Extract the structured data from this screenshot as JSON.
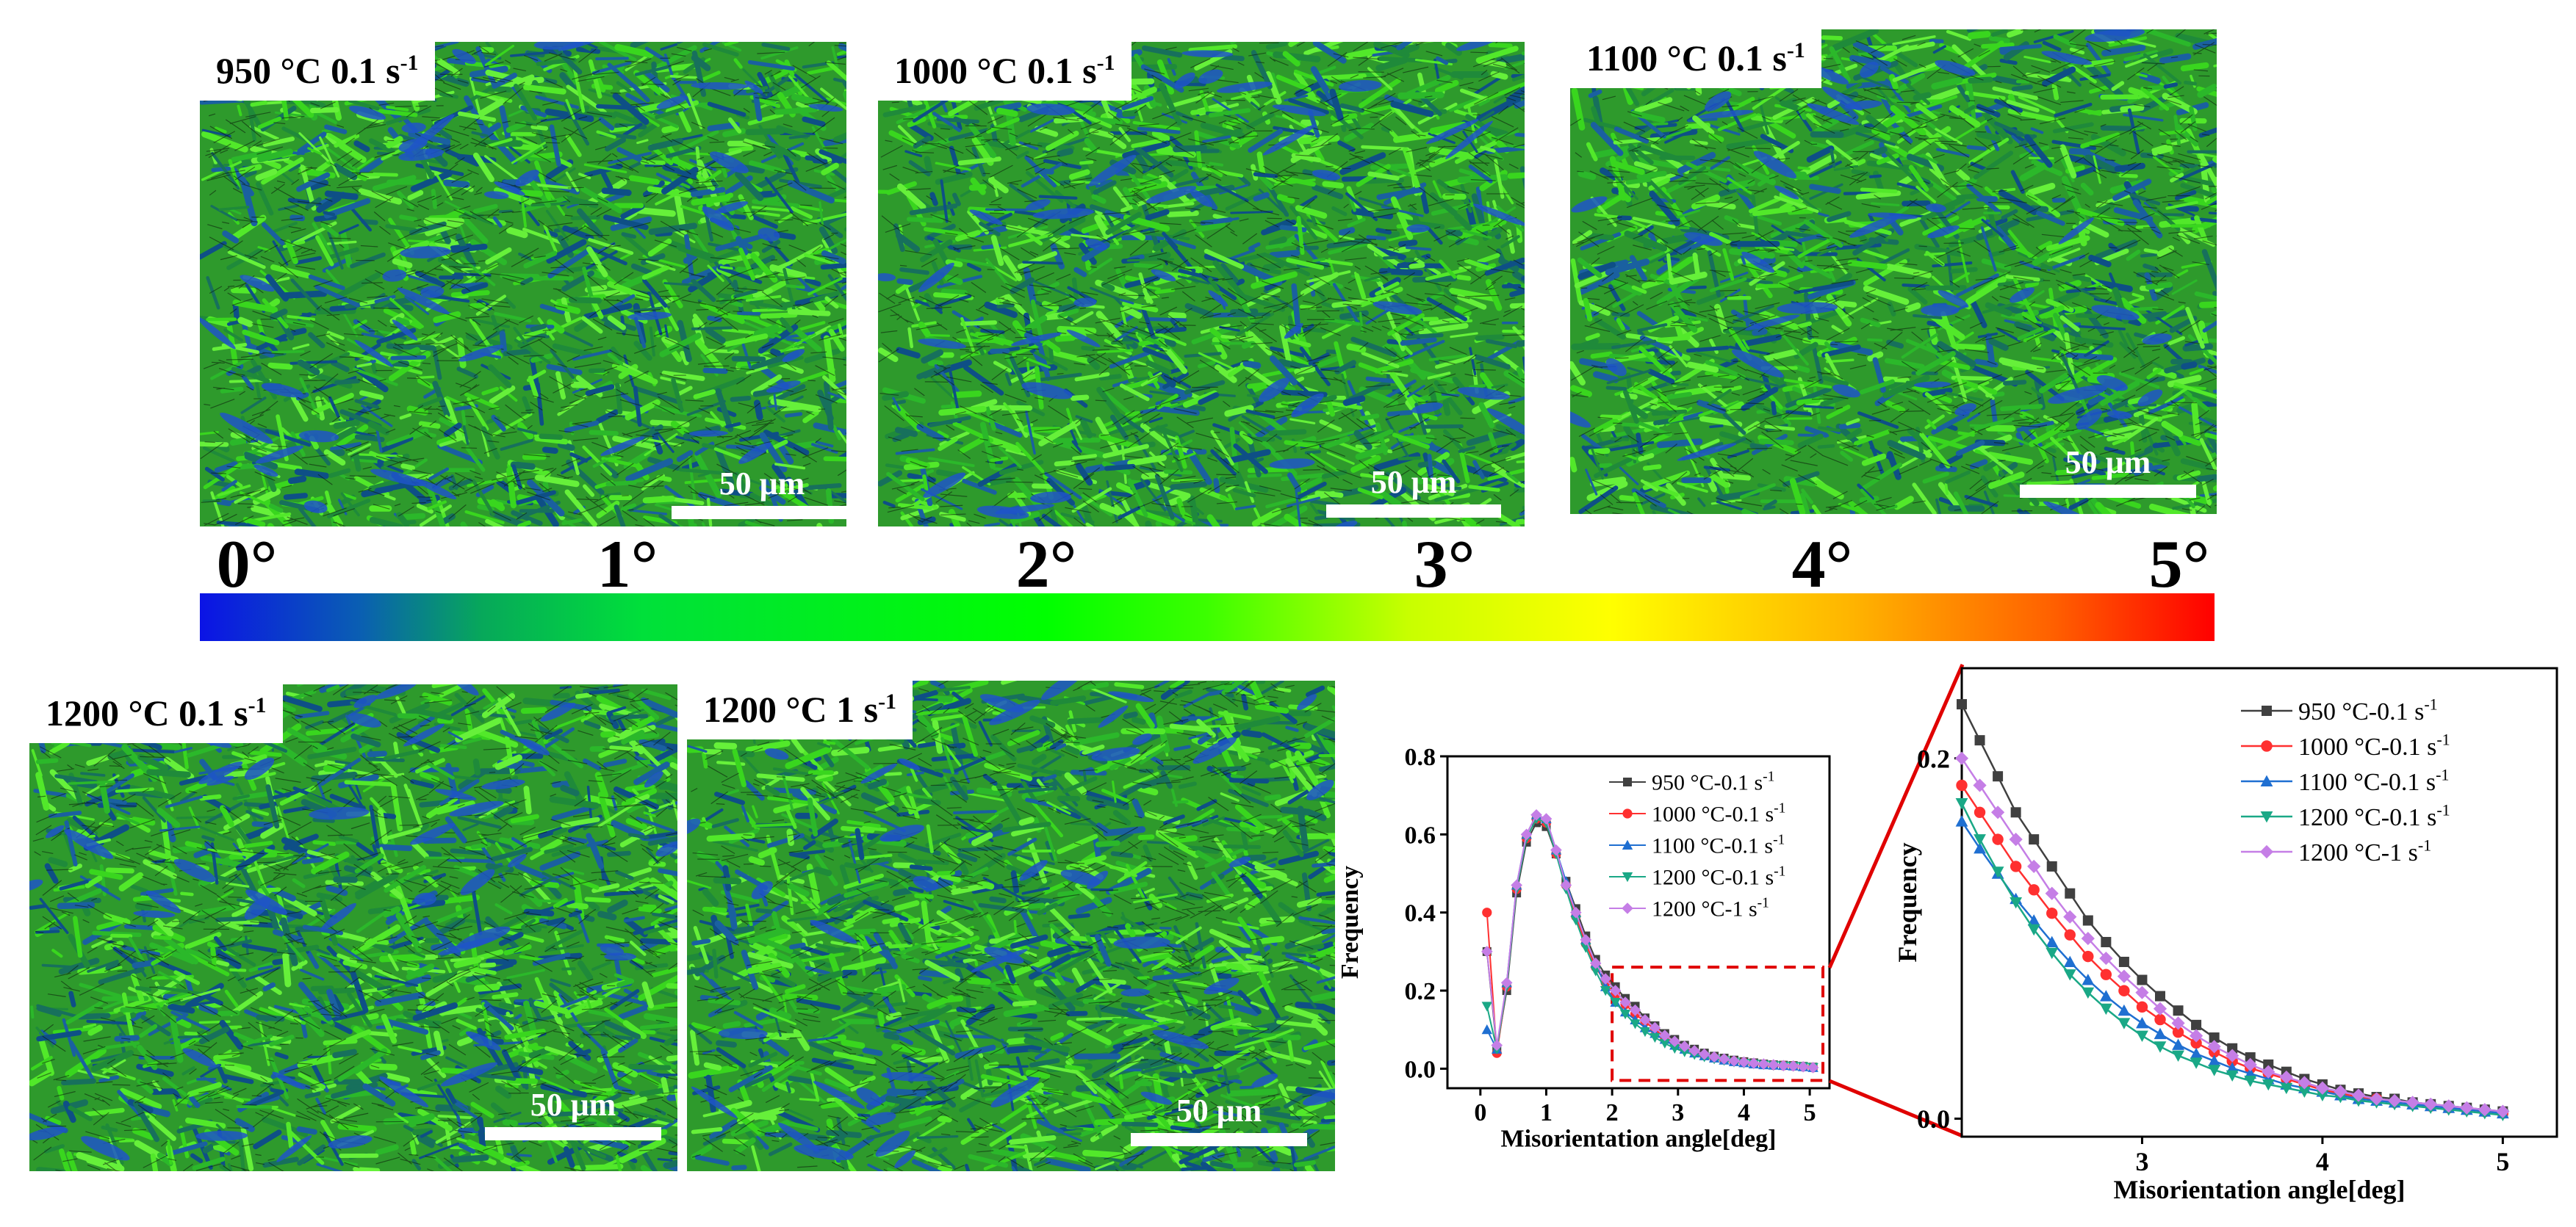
{
  "panels": [
    {
      "id": "p950",
      "label_temp": "950 °C 0.1 s",
      "label_sup": "-1",
      "scalebar": "50 μm"
    },
    {
      "id": "p1000",
      "label_temp": "1000 °C 0.1 s",
      "label_sup": "-1",
      "scalebar": "50 μm"
    },
    {
      "id": "p1100",
      "label_temp": "1100 °C 0.1 s",
      "label_sup": "-1",
      "scalebar": "50 μm"
    },
    {
      "id": "p1200a",
      "label_temp": "1200 °C 0.1 s",
      "label_sup": "-1",
      "scalebar": "50 μm"
    },
    {
      "id": "p1200b",
      "label_temp": "1200 °C 1 s",
      "label_sup": "-1",
      "scalebar": "50 μm"
    }
  ],
  "colorbar": {
    "ticks": [
      "0°",
      "1°",
      "2°",
      "3°",
      "4°",
      "5°"
    ],
    "colors": {
      "low": "#0b13e6",
      "mid": "#00ff00",
      "high": "#ff0000"
    }
  },
  "chart_data": [
    {
      "type": "line",
      "title": "",
      "xlabel": "Misorientation  angle[deg]",
      "ylabel": "Frequency",
      "xlim": [
        -0.5,
        5.3
      ],
      "ylim": [
        -0.05,
        0.8
      ],
      "xticks": [
        "0",
        "1",
        "2",
        "3",
        "4",
        "5"
      ],
      "yticks": [
        "0.0",
        "0.2",
        "0.4",
        "0.6",
        "0.8"
      ],
      "legend_position": "right",
      "highlight_box": {
        "x": [
          2.0,
          5.2
        ],
        "y": [
          -0.03,
          0.26
        ]
      },
      "series": [
        {
          "name": "950 °C-0.1 s",
          "sup": "-1",
          "color": "#404040",
          "marker": "square",
          "x": [
            0.1,
            0.25,
            0.4,
            0.55,
            0.7,
            0.85,
            1.0,
            1.15,
            1.3,
            1.45,
            1.6,
            1.75,
            1.9,
            2.05,
            2.2,
            2.35,
            2.5,
            2.65,
            2.8,
            2.95,
            3.1,
            3.25,
            3.4,
            3.55,
            3.7,
            3.85,
            4.0,
            4.15,
            4.3,
            4.45,
            4.6,
            4.75,
            4.9,
            5.05
          ],
          "values": [
            0.3,
            0.05,
            0.2,
            0.45,
            0.58,
            0.63,
            0.62,
            0.55,
            0.48,
            0.41,
            0.34,
            0.28,
            0.24,
            0.21,
            0.18,
            0.16,
            0.13,
            0.11,
            0.09,
            0.075,
            0.06,
            0.05,
            0.04,
            0.032,
            0.027,
            0.022,
            0.018,
            0.015,
            0.012,
            0.01,
            0.009,
            0.008,
            0.006,
            0.004
          ]
        },
        {
          "name": "1000 °C-0.1 s",
          "sup": "-1",
          "color": "#ff3030",
          "marker": "circle",
          "x": [
            0.1,
            0.25,
            0.4,
            0.55,
            0.7,
            0.85,
            1.0,
            1.15,
            1.3,
            1.45,
            1.6,
            1.75,
            1.9,
            2.05,
            2.2,
            2.35,
            2.5,
            2.65,
            2.8,
            2.95,
            3.1,
            3.25,
            3.4,
            3.55,
            3.7,
            3.85,
            4.0,
            4.15,
            4.3,
            4.45,
            4.6,
            4.75,
            4.9,
            5.05
          ],
          "values": [
            0.4,
            0.04,
            0.21,
            0.46,
            0.59,
            0.64,
            0.63,
            0.55,
            0.47,
            0.39,
            0.32,
            0.26,
            0.22,
            0.19,
            0.165,
            0.14,
            0.12,
            0.1,
            0.08,
            0.065,
            0.052,
            0.042,
            0.034,
            0.028,
            0.023,
            0.019,
            0.016,
            0.013,
            0.011,
            0.009,
            0.008,
            0.007,
            0.005,
            0.003
          ]
        },
        {
          "name": "1100 °C-0.1 s",
          "sup": "-1",
          "color": "#1f6fd1",
          "marker": "triangle-up",
          "x": [
            0.1,
            0.25,
            0.4,
            0.55,
            0.7,
            0.85,
            1.0,
            1.15,
            1.3,
            1.45,
            1.6,
            1.75,
            1.9,
            2.05,
            2.2,
            2.35,
            2.5,
            2.65,
            2.8,
            2.95,
            3.1,
            3.25,
            3.4,
            3.55,
            3.7,
            3.85,
            4.0,
            4.15,
            4.3,
            4.45,
            4.6,
            4.75,
            4.9,
            5.05
          ],
          "values": [
            0.1,
            0.05,
            0.22,
            0.47,
            0.6,
            0.65,
            0.64,
            0.56,
            0.48,
            0.4,
            0.33,
            0.27,
            0.21,
            0.17,
            0.145,
            0.125,
            0.105,
            0.09,
            0.075,
            0.06,
            0.05,
            0.04,
            0.033,
            0.027,
            0.022,
            0.018,
            0.015,
            0.012,
            0.01,
            0.009,
            0.008,
            0.007,
            0.005,
            0.003
          ]
        },
        {
          "name": "1200 °C-0.1 s",
          "sup": "-1",
          "color": "#1aa886",
          "marker": "triangle-down",
          "x": [
            0.1,
            0.25,
            0.4,
            0.55,
            0.7,
            0.85,
            1.0,
            1.15,
            1.3,
            1.45,
            1.6,
            1.75,
            1.9,
            2.05,
            2.2,
            2.35,
            2.5,
            2.65,
            2.8,
            2.95,
            3.1,
            3.25,
            3.4,
            3.55,
            3.7,
            3.85,
            4.0,
            4.15,
            4.3,
            4.45,
            4.6,
            4.75,
            4.9,
            5.05
          ],
          "values": [
            0.16,
            0.05,
            0.21,
            0.46,
            0.59,
            0.64,
            0.63,
            0.55,
            0.46,
            0.38,
            0.31,
            0.25,
            0.2,
            0.17,
            0.14,
            0.115,
            0.095,
            0.08,
            0.065,
            0.052,
            0.043,
            0.036,
            0.03,
            0.025,
            0.021,
            0.017,
            0.014,
            0.012,
            0.01,
            0.008,
            0.007,
            0.006,
            0.005,
            0.003
          ]
        },
        {
          "name": "1200 °C-1 s",
          "sup": "-1",
          "color": "#c57ee6",
          "marker": "diamond",
          "x": [
            0.1,
            0.25,
            0.4,
            0.55,
            0.7,
            0.85,
            1.0,
            1.15,
            1.3,
            1.45,
            1.6,
            1.75,
            1.9,
            2.05,
            2.2,
            2.35,
            2.5,
            2.65,
            2.8,
            2.95,
            3.1,
            3.25,
            3.4,
            3.55,
            3.7,
            3.85,
            4.0,
            4.15,
            4.3,
            4.45,
            4.6,
            4.75,
            4.9,
            5.05
          ],
          "values": [
            0.3,
            0.06,
            0.22,
            0.47,
            0.6,
            0.65,
            0.64,
            0.56,
            0.47,
            0.4,
            0.33,
            0.27,
            0.23,
            0.2,
            0.17,
            0.15,
            0.125,
            0.105,
            0.085,
            0.07,
            0.057,
            0.046,
            0.037,
            0.03,
            0.025,
            0.02,
            0.017,
            0.014,
            0.012,
            0.01,
            0.008,
            0.007,
            0.005,
            0.003
          ]
        }
      ]
    },
    {
      "type": "line",
      "title": "",
      "xlabel": "Misorientation  angle[deg]",
      "ylabel": "Frequency",
      "xlim": [
        2.0,
        5.3
      ],
      "ylim": [
        -0.01,
        0.25
      ],
      "xticks": [
        "3",
        "4",
        "5"
      ],
      "yticks": [
        "0.0",
        "0.2"
      ],
      "legend_position": "top-right",
      "series": [
        {
          "name": "950 °C-0.1 s",
          "sup": "-1",
          "color": "#404040",
          "marker": "square",
          "x": [
            2.0,
            2.1,
            2.2,
            2.3,
            2.4,
            2.5,
            2.6,
            2.7,
            2.8,
            2.9,
            3.0,
            3.1,
            3.2,
            3.3,
            3.4,
            3.5,
            3.6,
            3.7,
            3.8,
            3.9,
            4.0,
            4.1,
            4.2,
            4.3,
            4.4,
            4.5,
            4.6,
            4.7,
            4.8,
            4.9,
            5.0
          ],
          "values": [
            0.23,
            0.21,
            0.19,
            0.17,
            0.155,
            0.14,
            0.125,
            0.11,
            0.098,
            0.087,
            0.077,
            0.068,
            0.06,
            0.052,
            0.045,
            0.039,
            0.034,
            0.03,
            0.026,
            0.022,
            0.019,
            0.016,
            0.014,
            0.012,
            0.011,
            0.009,
            0.008,
            0.007,
            0.006,
            0.005,
            0.004
          ]
        },
        {
          "name": "1000 °C-0.1 s",
          "sup": "-1",
          "color": "#ff3030",
          "marker": "circle",
          "x": [
            2.0,
            2.1,
            2.2,
            2.3,
            2.4,
            2.5,
            2.6,
            2.7,
            2.8,
            2.9,
            3.0,
            3.1,
            3.2,
            3.3,
            3.4,
            3.5,
            3.6,
            3.7,
            3.8,
            3.9,
            4.0,
            4.1,
            4.2,
            4.3,
            4.4,
            4.5,
            4.6,
            4.7,
            4.8,
            4.9,
            5.0
          ],
          "values": [
            0.185,
            0.17,
            0.155,
            0.14,
            0.127,
            0.114,
            0.102,
            0.09,
            0.08,
            0.071,
            0.062,
            0.055,
            0.048,
            0.042,
            0.037,
            0.032,
            0.028,
            0.025,
            0.022,
            0.019,
            0.016,
            0.014,
            0.012,
            0.011,
            0.009,
            0.008,
            0.007,
            0.006,
            0.005,
            0.004,
            0.003
          ]
        },
        {
          "name": "1100 °C-0.1 s",
          "sup": "-1",
          "color": "#1f6fd1",
          "marker": "triangle-up",
          "x": [
            2.0,
            2.1,
            2.2,
            2.3,
            2.4,
            2.5,
            2.6,
            2.7,
            2.8,
            2.9,
            3.0,
            3.1,
            3.2,
            3.3,
            3.4,
            3.5,
            3.6,
            3.7,
            3.8,
            3.9,
            4.0,
            4.1,
            4.2,
            4.3,
            4.4,
            4.5,
            4.6,
            4.7,
            4.8,
            4.9,
            5.0
          ],
          "values": [
            0.165,
            0.15,
            0.136,
            0.122,
            0.11,
            0.098,
            0.087,
            0.077,
            0.068,
            0.06,
            0.053,
            0.047,
            0.041,
            0.036,
            0.032,
            0.028,
            0.025,
            0.022,
            0.019,
            0.017,
            0.015,
            0.013,
            0.011,
            0.01,
            0.009,
            0.008,
            0.007,
            0.006,
            0.005,
            0.004,
            0.003
          ]
        },
        {
          "name": "1200 °C-0.1 s",
          "sup": "-1",
          "color": "#1aa886",
          "marker": "triangle-down",
          "x": [
            2.0,
            2.1,
            2.2,
            2.3,
            2.4,
            2.5,
            2.6,
            2.7,
            2.8,
            2.9,
            3.0,
            3.1,
            3.2,
            3.3,
            3.4,
            3.5,
            3.6,
            3.7,
            3.8,
            3.9,
            4.0,
            4.1,
            4.2,
            4.3,
            4.4,
            4.5,
            4.6,
            4.7,
            4.8,
            4.9,
            5.0
          ],
          "values": [
            0.175,
            0.155,
            0.137,
            0.12,
            0.105,
            0.092,
            0.08,
            0.07,
            0.061,
            0.053,
            0.046,
            0.04,
            0.035,
            0.031,
            0.027,
            0.024,
            0.021,
            0.019,
            0.017,
            0.015,
            0.013,
            0.012,
            0.01,
            0.009,
            0.008,
            0.007,
            0.006,
            0.005,
            0.004,
            0.003,
            0.002
          ]
        },
        {
          "name": "1200 °C-1 s",
          "sup": "-1",
          "color": "#c57ee6",
          "marker": "diamond",
          "x": [
            2.0,
            2.1,
            2.2,
            2.3,
            2.4,
            2.5,
            2.6,
            2.7,
            2.8,
            2.9,
            3.0,
            3.1,
            3.2,
            3.3,
            3.4,
            3.5,
            3.6,
            3.7,
            3.8,
            3.9,
            4.0,
            4.1,
            4.2,
            4.3,
            4.4,
            4.5,
            4.6,
            4.7,
            4.8,
            4.9,
            5.0
          ],
          "values": [
            0.2,
            0.185,
            0.17,
            0.155,
            0.14,
            0.125,
            0.112,
            0.1,
            0.089,
            0.079,
            0.07,
            0.061,
            0.053,
            0.046,
            0.04,
            0.035,
            0.03,
            0.026,
            0.023,
            0.02,
            0.017,
            0.015,
            0.013,
            0.011,
            0.01,
            0.009,
            0.008,
            0.007,
            0.006,
            0.005,
            0.004
          ]
        }
      ]
    }
  ]
}
